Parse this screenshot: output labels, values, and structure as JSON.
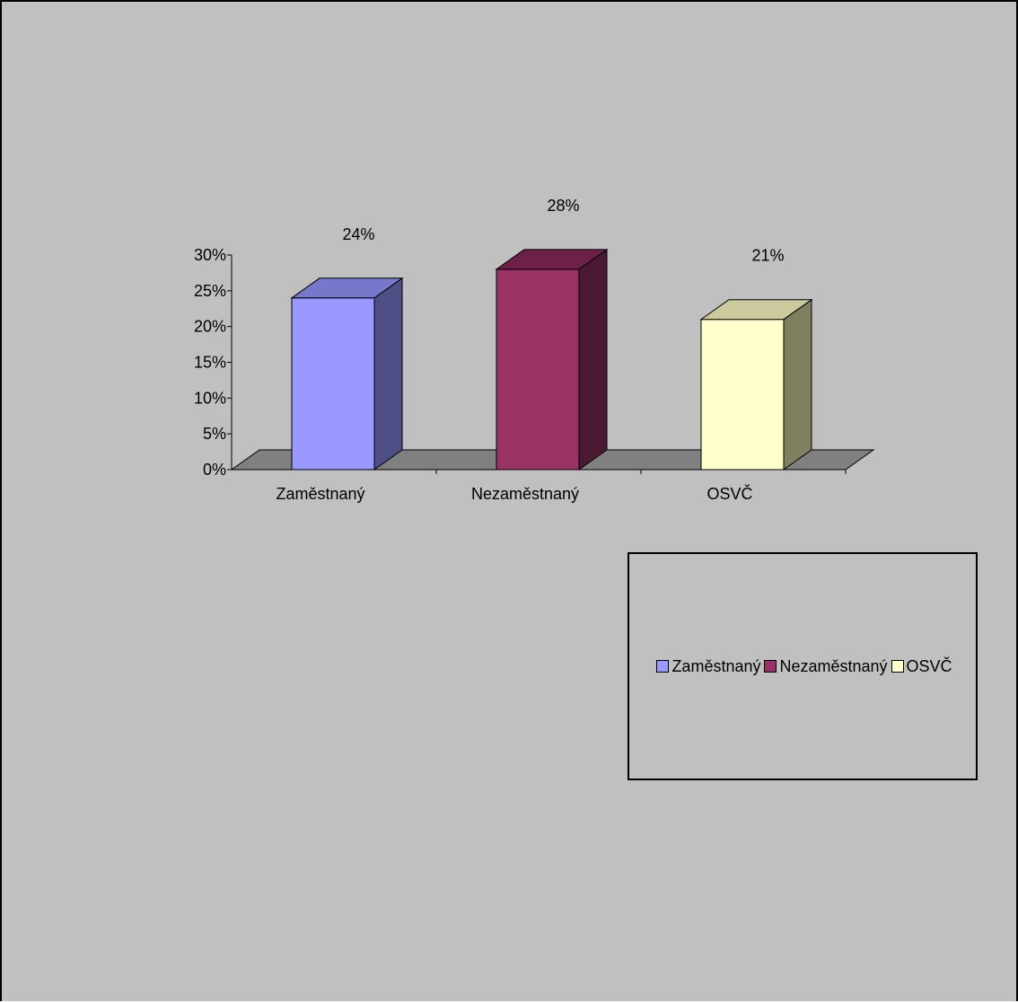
{
  "chart_data": {
    "type": "bar",
    "categories": [
      "Zaměstnaný",
      "Nezaměstnaný",
      "OSVČ"
    ],
    "values": [
      24,
      28,
      21
    ],
    "data_labels": [
      "24%",
      "28%",
      "21%"
    ],
    "ylim": [
      0,
      30
    ],
    "yticks": [
      "0%",
      "5%",
      "10%",
      "15%",
      "20%",
      "25%",
      "30%"
    ],
    "colors": [
      "#9999ff",
      "#993366",
      "#ffffcc"
    ],
    "side_colors": [
      "#4f4f88",
      "#4a1a33",
      "#808060"
    ],
    "top_colors": [
      "#7777cc",
      "#6f2048",
      "#ccc99f"
    ],
    "floor_color": "#808080",
    "background": "#c0c0c0",
    "legend_position": "right",
    "grid": false
  },
  "legend": {
    "items": [
      {
        "label": "Zaměstnaný",
        "color": "#9999ff"
      },
      {
        "label": "Nezaměstnaný",
        "color": "#993366"
      },
      {
        "label": "OSVČ",
        "color": "#ffffcc"
      }
    ]
  }
}
